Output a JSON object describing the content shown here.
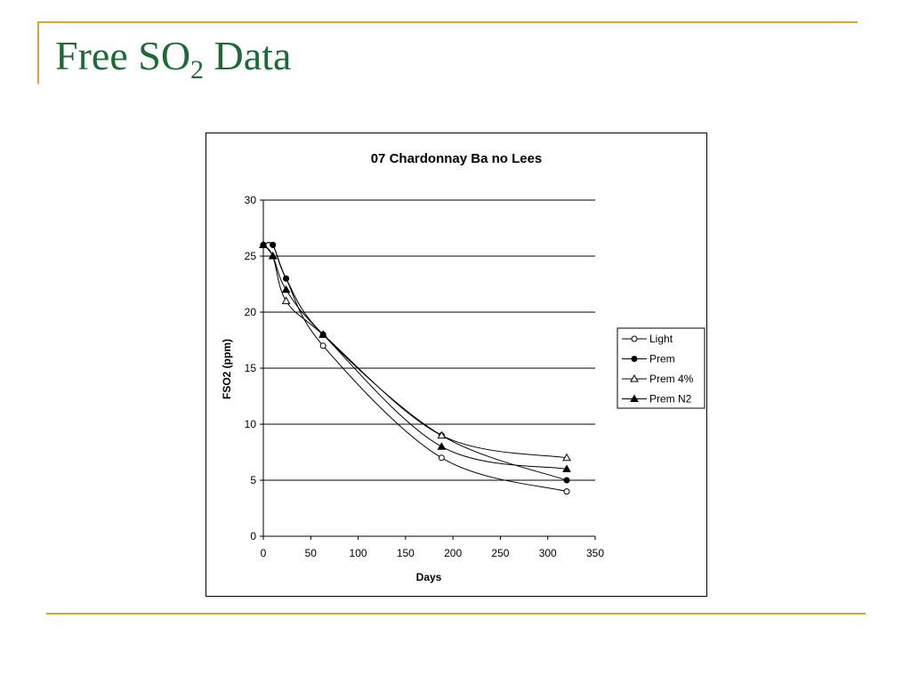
{
  "slide": {
    "title_main": "Free SO",
    "title_sub": "2",
    "title_end": " Data",
    "accent_color": "#D4A82C",
    "title_color": "#1C6B37"
  },
  "chart_data": {
    "type": "line",
    "title": "07 Chardonnay Ba no Lees",
    "xlabel": "Days",
    "ylabel": "FSO2 (ppm)",
    "xlim": [
      0,
      350
    ],
    "ylim": [
      0,
      30
    ],
    "xticks": [
      0,
      50,
      100,
      150,
      200,
      250,
      300,
      350
    ],
    "yticks": [
      0,
      5,
      10,
      15,
      20,
      25,
      30
    ],
    "grid": "horizontal",
    "legend_position": "right",
    "series": [
      {
        "name": "Light",
        "marker": "circle-open",
        "x": [
          0,
          10,
          24,
          63,
          188,
          320
        ],
        "y": [
          26,
          26,
          23,
          17,
          7,
          4
        ]
      },
      {
        "name": "Prem",
        "marker": "circle-filled",
        "x": [
          0,
          10,
          24,
          63,
          188,
          320
        ],
        "y": [
          26,
          26,
          23,
          18,
          9,
          5
        ]
      },
      {
        "name": "Prem 4%",
        "marker": "triangle-open",
        "x": [
          0,
          10,
          24,
          63,
          188,
          320
        ],
        "y": [
          26,
          25,
          21,
          18,
          9,
          7
        ]
      },
      {
        "name": "Prem N2",
        "marker": "triangle-filled",
        "x": [
          0,
          10,
          24,
          63,
          188,
          320
        ],
        "y": [
          26,
          25,
          22,
          18,
          8,
          6
        ]
      }
    ]
  }
}
